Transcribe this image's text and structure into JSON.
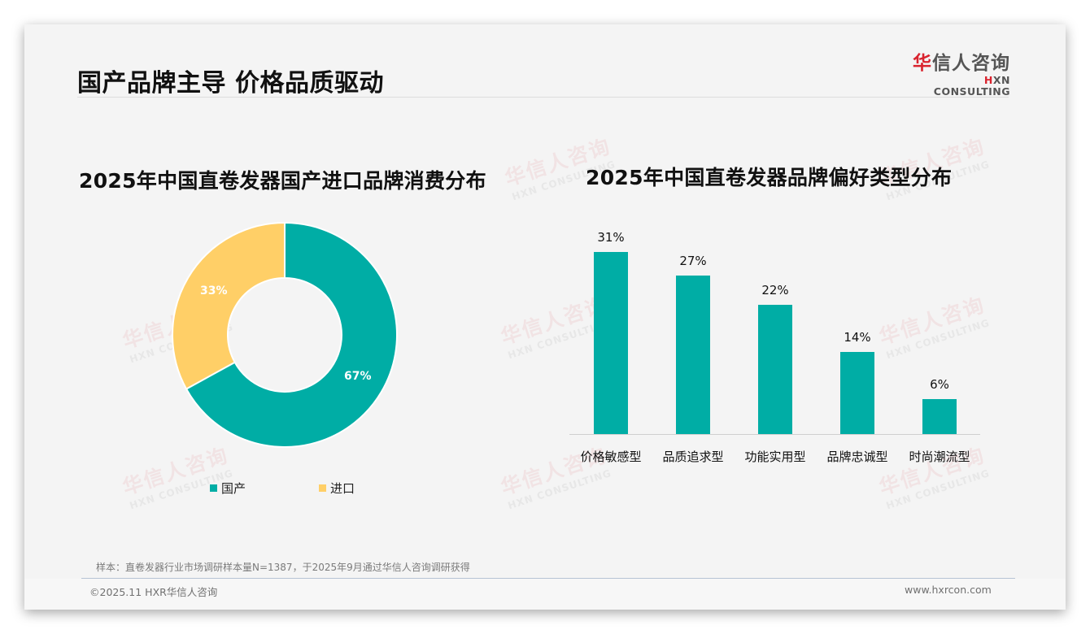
{
  "header": {
    "title": "国产品牌主导 价格品质驱动",
    "logo": {
      "cn_accent": "华",
      "cn_rest": "信人咨询",
      "en_accent": "H",
      "en_rest": "XN CONSULTING"
    }
  },
  "watermark": {
    "cn": "华信人咨询",
    "en": "HXN CONSULTING"
  },
  "left_chart": {
    "title": "2025年中国直卷发器国产进口品牌消费分布",
    "slices": [
      {
        "label": "国产",
        "value": 67,
        "display": "67%",
        "color": "#00ada5"
      },
      {
        "label": "进口",
        "value": 33,
        "display": "33%",
        "color": "#ffcf67"
      }
    ]
  },
  "right_chart": {
    "title": "2025年中国直卷发器品牌偏好类型分布",
    "color": "#00ada5",
    "bars": [
      {
        "label": "价格敏感型",
        "value": 31,
        "display": "31%"
      },
      {
        "label": "品质追求型",
        "value": 27,
        "display": "27%"
      },
      {
        "label": "功能实用型",
        "value": 22,
        "display": "22%"
      },
      {
        "label": "品牌忠诚型",
        "value": 14,
        "display": "14%"
      },
      {
        "label": "时尚潮流型",
        "value": 6,
        "display": "6%"
      }
    ]
  },
  "chart_data": [
    {
      "type": "pie",
      "variant": "donut",
      "title": "2025年中国直卷发器国产进口品牌消费分布",
      "categories": [
        "国产",
        "进口"
      ],
      "values": [
        67,
        33
      ],
      "unit": "%",
      "colors": [
        "#00ada5",
        "#ffcf67"
      ],
      "legend_position": "bottom"
    },
    {
      "type": "bar",
      "title": "2025年中国直卷发器品牌偏好类型分布",
      "categories": [
        "价格敏感型",
        "品质追求型",
        "功能实用型",
        "品牌忠诚型",
        "时尚潮流型"
      ],
      "values": [
        31,
        27,
        22,
        14,
        6
      ],
      "unit": "%",
      "xlabel": "",
      "ylabel": "",
      "ylim": [
        0,
        31
      ],
      "grid": false,
      "data_labels": true,
      "color": "#00ada5"
    }
  ],
  "footer": {
    "note": "样本：直卷发器行业市场调研样本量N=1387，于2025年9月通过华信人咨询调研获得",
    "copyright": "©2025.11 HXR华信人咨询",
    "website": "www.hxrcon.com"
  }
}
